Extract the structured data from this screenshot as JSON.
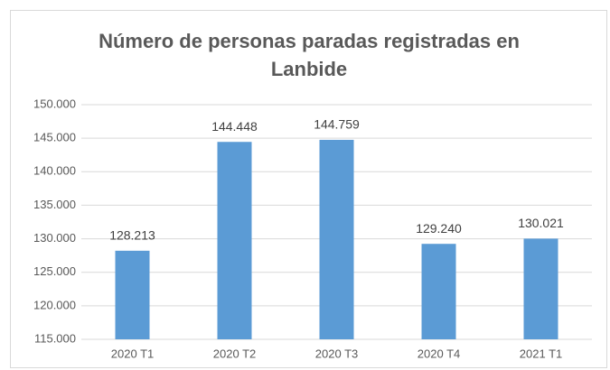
{
  "chart_data": {
    "type": "bar",
    "title": "Número de personas paradas registradas en Lanbide",
    "categories": [
      "2020 T1",
      "2020 T2",
      "2020 T3",
      "2020 T4",
      "2021 T1"
    ],
    "values": [
      128213,
      144448,
      144759,
      129240,
      130021
    ],
    "value_labels": [
      "128.213",
      "144.448",
      "144.759",
      "129.240",
      "130.021"
    ],
    "color": "#5b9bd5",
    "ylim": [
      115000,
      150000
    ],
    "yticks": [
      {
        "value": 115000,
        "label": "115.000"
      },
      {
        "value": 120000,
        "label": "120.000"
      },
      {
        "value": 125000,
        "label": "125.000"
      },
      {
        "value": 130000,
        "label": "130.000"
      },
      {
        "value": 135000,
        "label": "135.000"
      },
      {
        "value": 140000,
        "label": "140.000"
      },
      {
        "value": 145000,
        "label": "145.000"
      },
      {
        "value": 150000,
        "label": "150.000"
      }
    ],
    "grid": true
  }
}
